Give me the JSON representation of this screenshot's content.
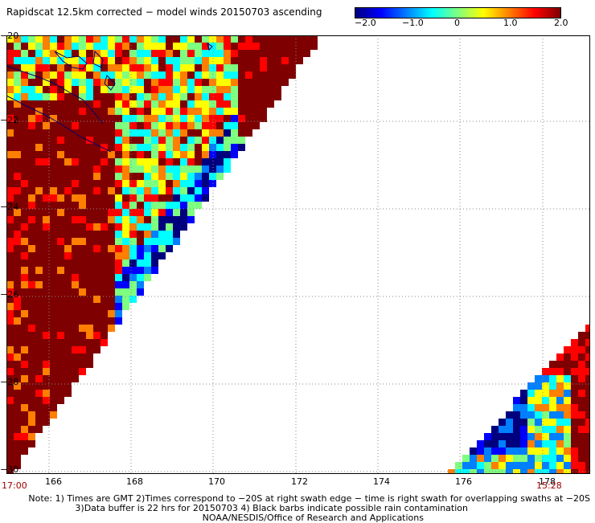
{
  "title": "Rapidscat 12.5km corrected − model winds 20150703 ascending",
  "colorbar": {
    "ticks": [
      "−2.0",
      "−1.0",
      "0",
      "1.0",
      "2.0"
    ],
    "colors": [
      "#00007f",
      "#0000ff",
      "#007fff",
      "#00ffff",
      "#7fff7f",
      "#ffff00",
      "#ff7f00",
      "#ff0000",
      "#7f0000"
    ]
  },
  "map": {
    "lat_labels": [
      "−20",
      "−22",
      "−24",
      "−26",
      "−28",
      "−30"
    ],
    "lon_labels": [
      "166",
      "168",
      "170",
      "172",
      "174",
      "176",
      "178"
    ],
    "lon_range": [
      165.8,
      178.9
    ],
    "lat_range": [
      -30,
      -20
    ]
  },
  "times": {
    "left": "17:00",
    "right": "15:28"
  },
  "notes": [
    "Note: 1) Times are GMT 2)Times correspond to −20S at right swath edge − time is right swath for overlapping swaths at −20S",
    "3)Data buffer is 22 hrs for 20150703 4) Black barbs indicate possible rain contamination",
    "NOAA/NESDIS/Office of Research and Applications"
  ],
  "palette": {
    "dark": "#800000",
    "coast": "#00006e",
    "grid": "#888888"
  }
}
